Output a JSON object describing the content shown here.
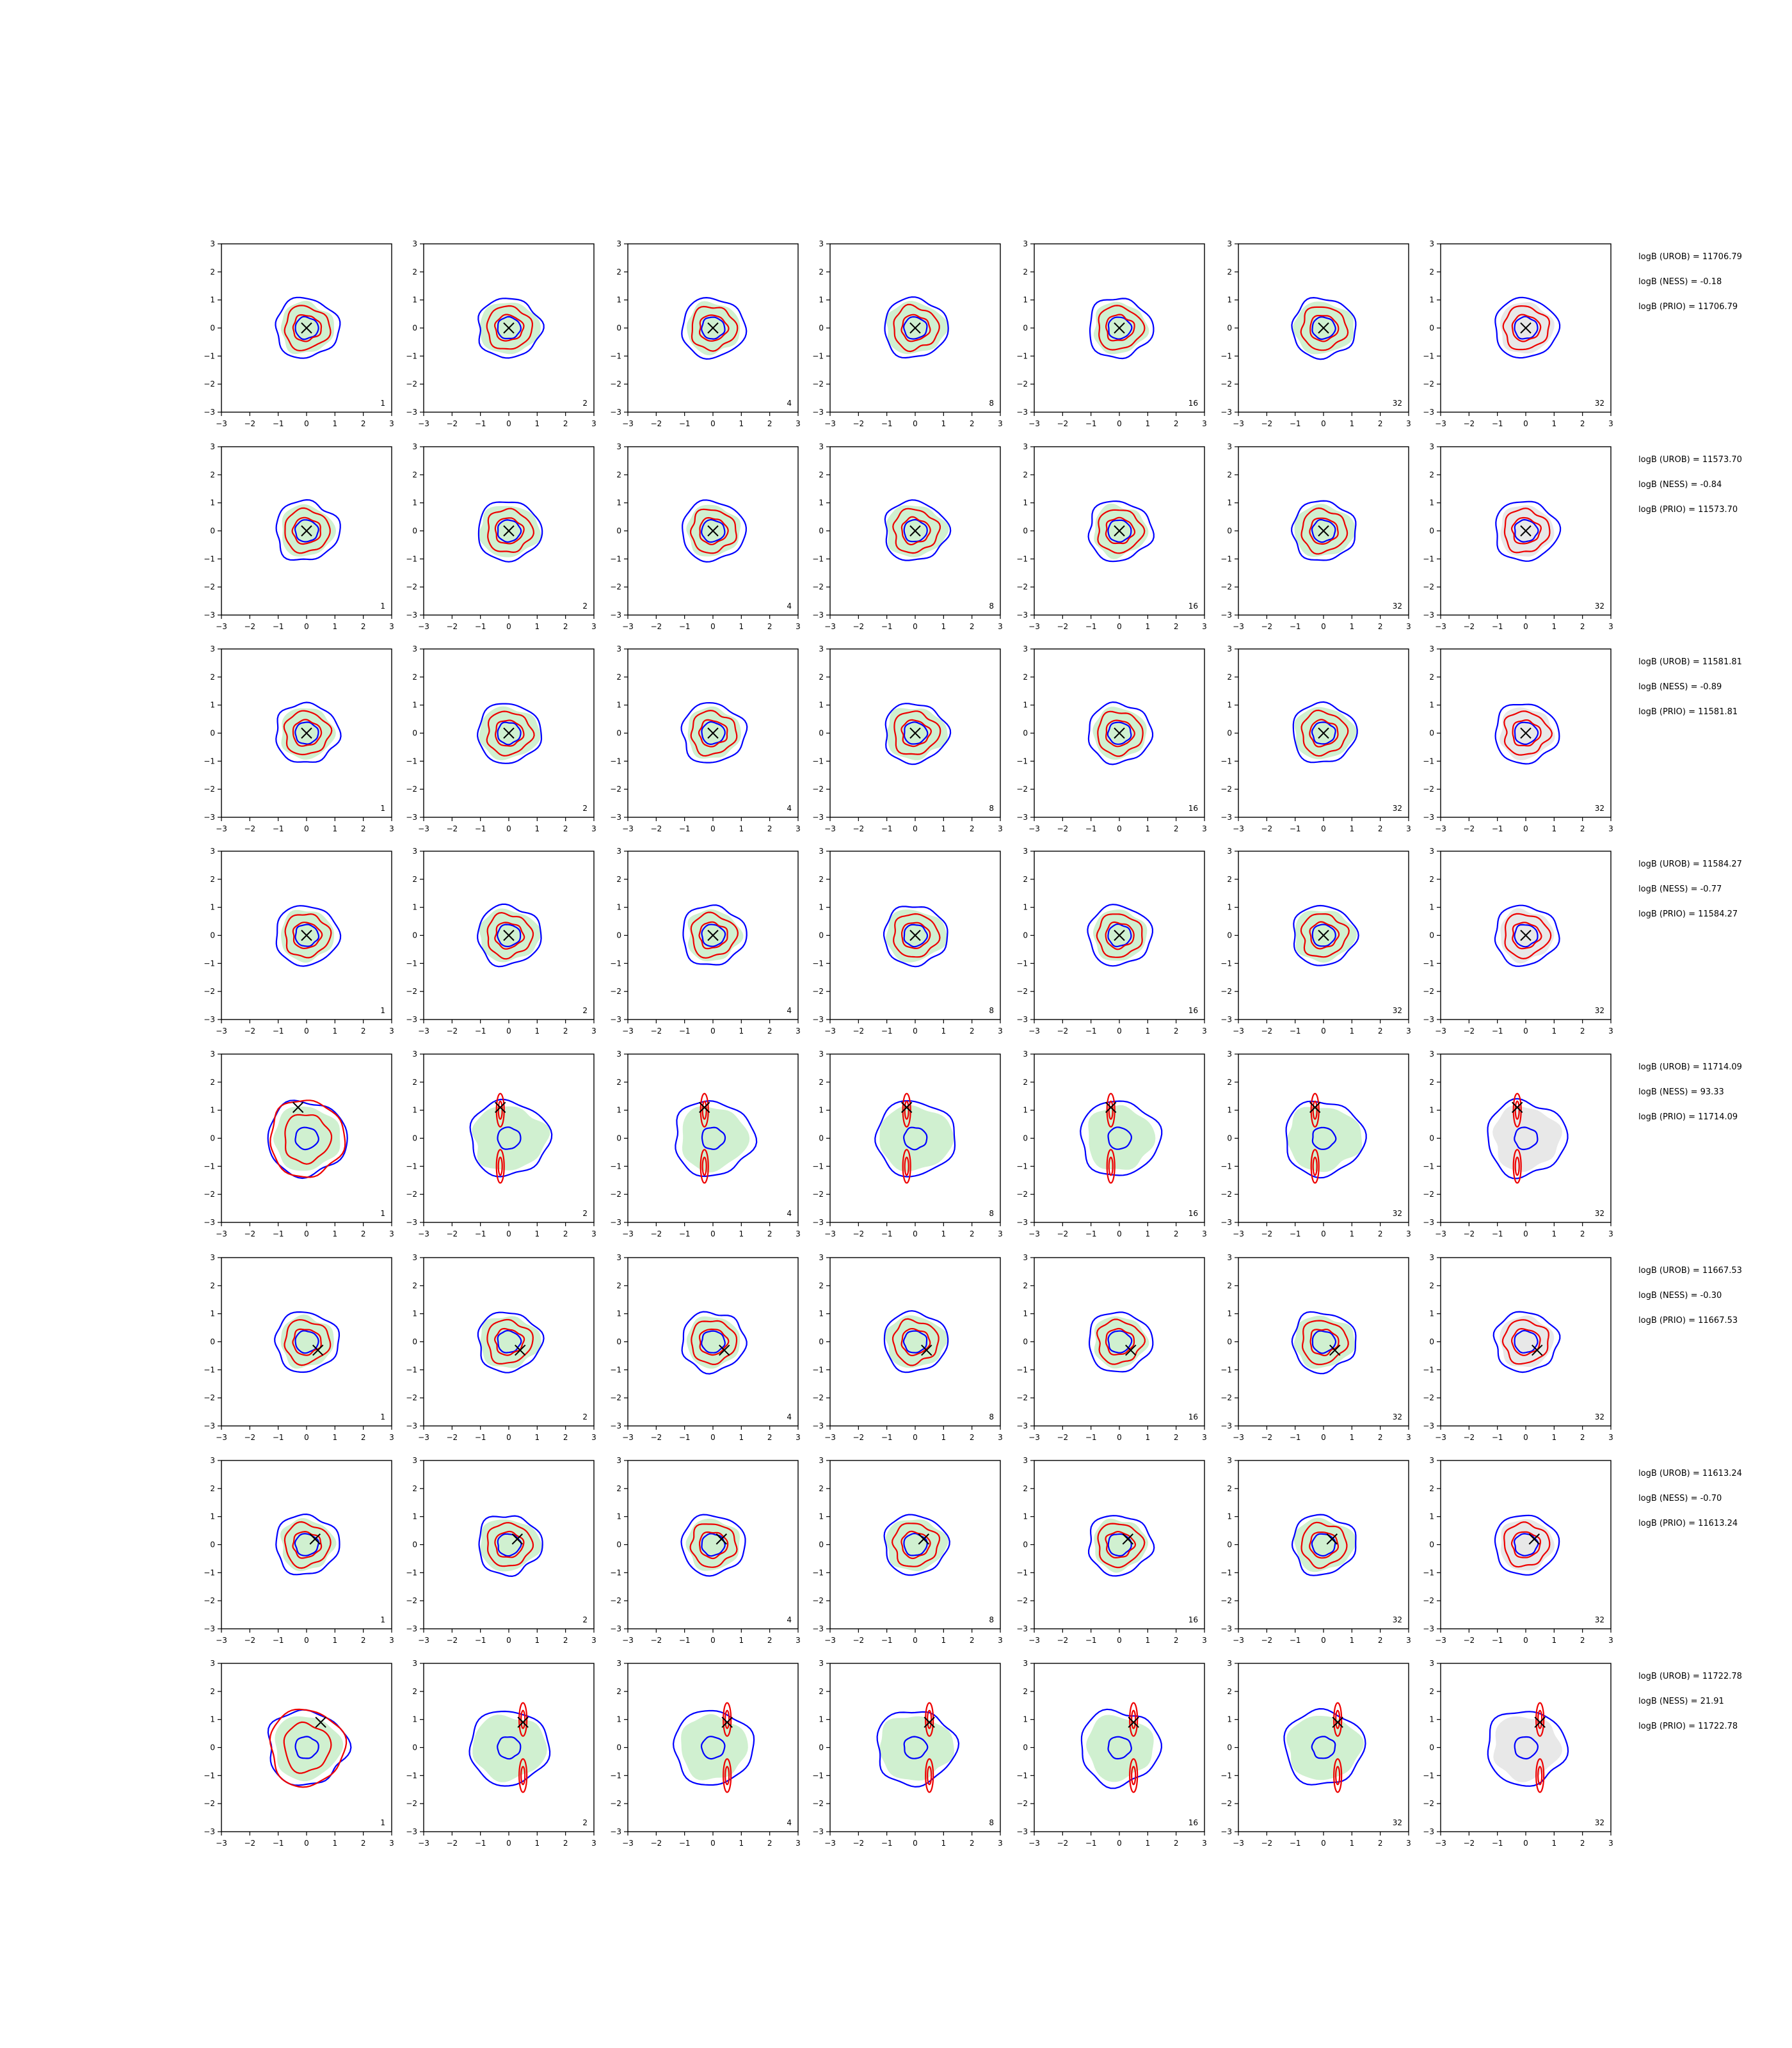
{
  "figure": {
    "rows": 8,
    "cols": 7,
    "axis_ticks": [
      "−3",
      "−2",
      "−1",
      "0",
      "1",
      "2",
      "3"
    ],
    "corner_labels": [
      "1",
      "2",
      "4",
      "8",
      "16",
      "32",
      "32"
    ],
    "annotations": [
      [
        "logB (UROB) = 11706.79",
        "logB (NESS) = -0.18",
        "logB (PRIO) = 11706.79"
      ],
      [
        "logB (UROB) = 11573.70",
        "logB (NESS) = -0.84",
        "logB (PRIO) = 11573.70"
      ],
      [
        "logB (UROB) = 11581.81",
        "logB (NESS) = -0.89",
        "logB (PRIO) = 11581.81"
      ],
      [
        "logB (UROB) = 11584.27",
        "logB (NESS) = -0.77",
        "logB (PRIO) = 11584.27"
      ],
      [
        "logB (UROB) = 11714.09",
        "logB (NESS) = 93.33",
        "logB (PRIO) = 11714.09"
      ],
      [
        "logB (UROB) = 11667.53",
        "logB (NESS) = -0.30",
        "logB (PRIO) = 11667.53"
      ],
      [
        "logB (UROB) = 11613.24",
        "logB (NESS) = -0.70",
        "logB (PRIO) = 11613.24"
      ],
      [
        "logB (UROB) = 11722.78",
        "logB (NESS) = 21.91",
        "logB (PRIO) = 11722.78"
      ]
    ]
  },
  "chart_data": {
    "type": "contour",
    "xlim": [
      -3,
      3
    ],
    "ylim": [
      -3,
      3
    ],
    "xticks": [
      -3,
      -2,
      -1,
      0,
      1,
      2,
      3
    ],
    "yticks": [
      -3,
      -2,
      -1,
      0,
      1,
      2,
      3
    ],
    "colors": {
      "fill_green": "#d0f0d0",
      "fill_grey": "#e8e8e8",
      "contour_blue": "#0000ff",
      "contour_red": "#ee0000",
      "marker": "#000000"
    },
    "marker_positions": [
      [
        0,
        0
      ],
      [
        0,
        0
      ],
      [
        0,
        0
      ],
      [
        0,
        0
      ],
      [
        -0.3,
        1.1
      ],
      [
        0.4,
        -0.3
      ],
      [
        0.3,
        0.2
      ],
      [
        0.5,
        0.9
      ]
    ]
  }
}
